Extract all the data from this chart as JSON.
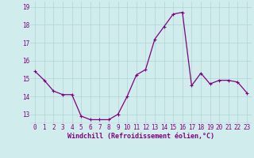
{
  "x": [
    0,
    1,
    2,
    3,
    4,
    5,
    6,
    7,
    8,
    9,
    10,
    11,
    12,
    13,
    14,
    15,
    16,
    17,
    18,
    19,
    20,
    21,
    22,
    23
  ],
  "y": [
    15.4,
    14.9,
    14.3,
    14.1,
    14.1,
    12.9,
    12.7,
    12.7,
    12.7,
    13.0,
    14.0,
    15.2,
    15.5,
    17.2,
    17.9,
    18.6,
    18.7,
    14.6,
    15.3,
    14.7,
    14.9,
    14.9,
    14.8,
    14.2
  ],
  "line_color": "#800080",
  "marker": "+",
  "marker_size": 3,
  "marker_linewidth": 0.8,
  "line_width": 0.9,
  "bg_color": "#d0ecec",
  "grid_color": "#aed4d4",
  "xlabel": "Windchill (Refroidissement éolien,°C)",
  "xlabel_fontsize": 6.0,
  "tick_fontsize": 5.5,
  "ylim": [
    12.5,
    19.3
  ],
  "xlim": [
    -0.5,
    23.5
  ],
  "yticks": [
    13,
    14,
    15,
    16,
    17,
    18,
    19
  ],
  "xtick_labels": [
    "0",
    "1",
    "2",
    "3",
    "4",
    "5",
    "6",
    "7",
    "8",
    "9",
    "10",
    "11",
    "12",
    "13",
    "14",
    "15",
    "16",
    "17",
    "18",
    "19",
    "20",
    "21",
    "22",
    "23"
  ]
}
